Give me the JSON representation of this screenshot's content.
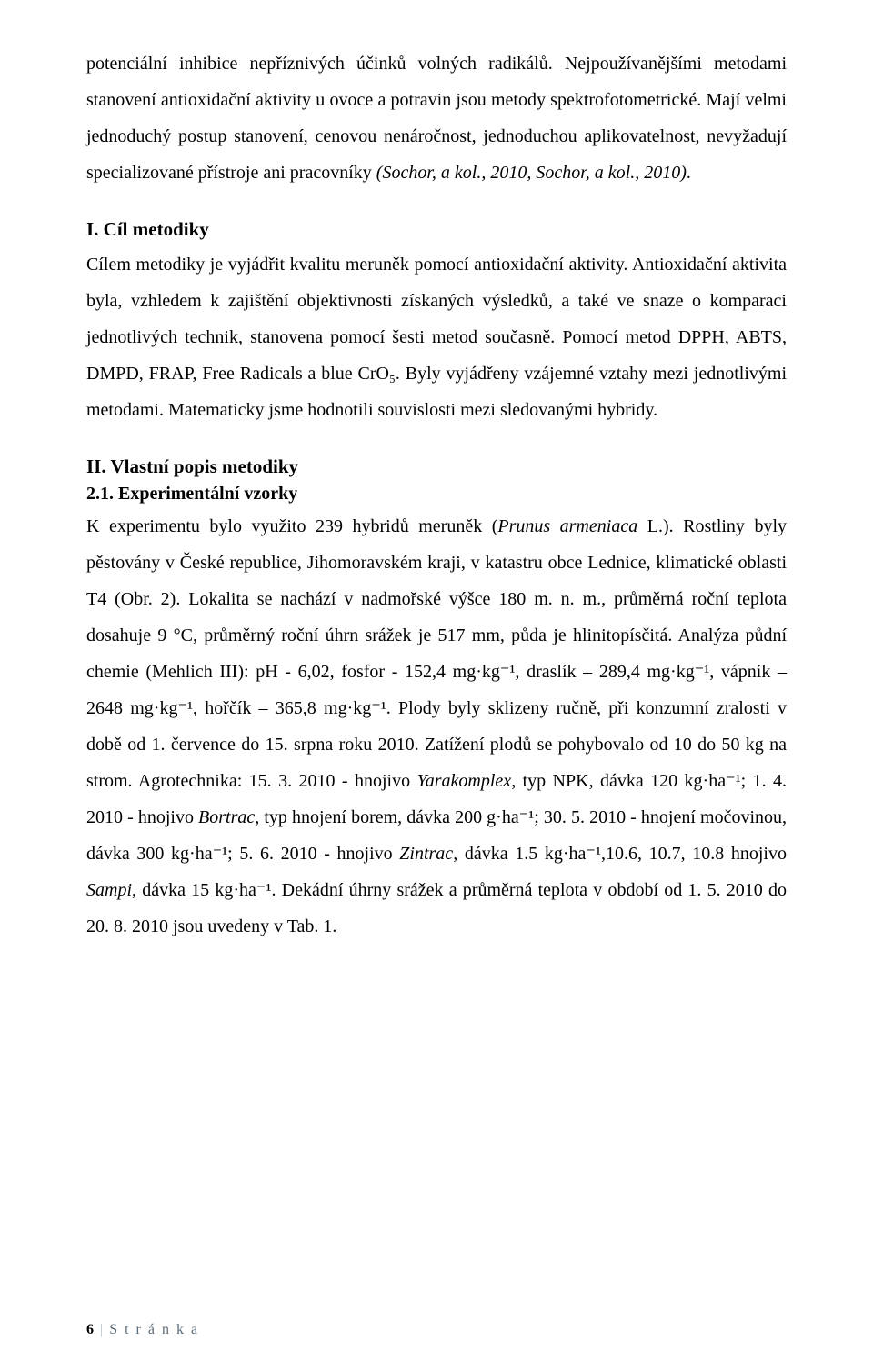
{
  "p1": "potenciální inhibice nepříznivých účinků volných radikálů. Nejpoužívanějšími metodami stanovení antioxidační aktivity u ovoce a potravin jsou metody spektrofotometrické. Mají velmi jednoduchý postup stanovení, cenovou nenáročnost, jednoduchou aplikovatelnost, nevyžadují specializované přístroje ani pracovníky ",
  "p1_italic": "(Sochor, a kol., 2010, Sochor, a kol., 2010)",
  "p1_tail": ".",
  "h1": "I. Cíl metodiky",
  "p2": "Cílem metodiky je vyjádřit kvalitu meruněk pomocí antioxidační aktivity. Antioxidační aktivita byla, vzhledem k zajištění objektivnosti získaných výsledků, a také ve snaze o komparaci jednotlivých technik, stanovena pomocí šesti metod současně. Pomocí metod DPPH, ABTS, DMPD, FRAP, Free Radicals a blue CrO₅. Byly vyjádřeny vzájemné vztahy mezi jednotlivými metodami. Matematicky jsme hodnotili souvislosti mezi sledovanými hybridy.",
  "h2": "II. Vlastní popis metodiky",
  "h2_1": "2.1. Experimentální vzorky",
  "p3a": "K experimentu bylo využito 239 hybridů meruněk (",
  "p3_italic1": "Prunus armeniaca",
  "p3b": " L.). Rostliny byly pěstovány v České republice, Jihomoravském kraji, v katastru obce Lednice, klimatické oblasti T4 (Obr. 2). Lokalita se nachází v nadmořské výšce 180 m. n. m., průměrná roční teplota dosahuje 9 °C, průměrný roční úhrn srážek je 517 mm, půda je hlinitopísčitá. Analýza půdní chemie (Mehlich III): pH - 6,02, fosfor - 152,4 mg·kg⁻¹, draslík – 289,4 mg·kg⁻¹, vápník – 2648 mg·kg⁻¹, hořčík – 365,8 mg·kg⁻¹. Plody byly sklizeny ručně, při konzumní zralosti v době od 1. července do 15. srpna roku 2010. Zatížení plodů se pohybovalo od 10 do 50 kg na strom. Agrotechnika: 15. 3. 2010 - hnojivo ",
  "p3_italic2": "Yarakomplex",
  "p3c": ", typ NPK, dávka 120 kg·ha⁻¹; 1. 4. 2010 - hnojivo ",
  "p3_italic3": "Bortrac",
  "p3d": ", typ hnojení borem, dávka 200 g·ha⁻¹; 30. 5. 2010 - hnojení močovinou, dávka 300 kg·ha⁻¹; 5. 6. 2010 - hnojivo ",
  "p3_italic4": "Zintrac",
  "p3e": ", dávka 1.5 kg·ha⁻¹,10.6, 10.7, 10.8 hnojivo ",
  "p3_italic5": "Sampi",
  "p3f": ", dávka 15 kg·ha⁻¹. Dekádní úhrny srážek a průměrná teplota v období od 1. 5. 2010 do 20. 8. 2010 jsou uvedeny v Tab. 1.",
  "footer_num": "6",
  "footer_text": "S t r á n k a"
}
